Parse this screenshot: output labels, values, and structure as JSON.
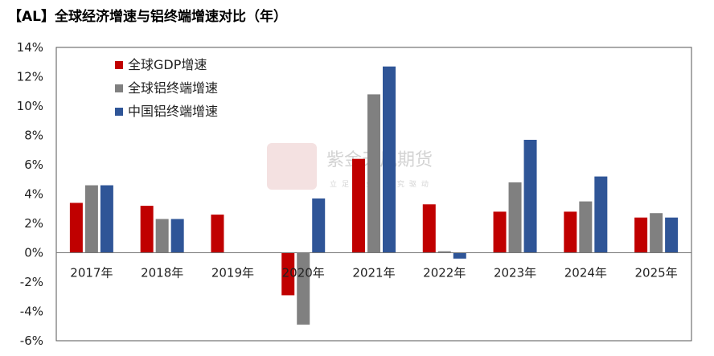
{
  "title": "【AL】全球经济增速与铝终端增速对比（年）",
  "watermark": {
    "seal_text": "紫金天风",
    "brand": "紫金天风期货",
    "slogan": "立足产业 研究驱动"
  },
  "chart_data": {
    "type": "bar",
    "categories": [
      "2017年",
      "2018年",
      "2019年",
      "2020年",
      "2021年",
      "2022年",
      "2023年",
      "2024年",
      "2025年"
    ],
    "series": [
      {
        "name": "全球GDP增速",
        "color": "#c00000",
        "values": [
          3.4,
          3.2,
          2.6,
          -2.9,
          6.4,
          3.3,
          2.8,
          2.8,
          2.4
        ]
      },
      {
        "name": "全球铝终端增速",
        "color": "#808080",
        "values": [
          4.6,
          2.3,
          null,
          -4.9,
          10.8,
          0.1,
          4.8,
          3.5,
          2.7
        ]
      },
      {
        "name": "中国铝终端增速",
        "color": "#2f5597",
        "values": [
          4.6,
          2.3,
          null,
          3.7,
          12.7,
          -0.4,
          7.7,
          5.2,
          2.4
        ]
      }
    ],
    "ylim": [
      -6,
      14
    ],
    "yticks": [
      "-6%",
      "-4%",
      "-2%",
      "0%",
      "2%",
      "4%",
      "6%",
      "8%",
      "10%",
      "12%",
      "14%"
    ],
    "grid": false,
    "legend_position": "top-left"
  }
}
